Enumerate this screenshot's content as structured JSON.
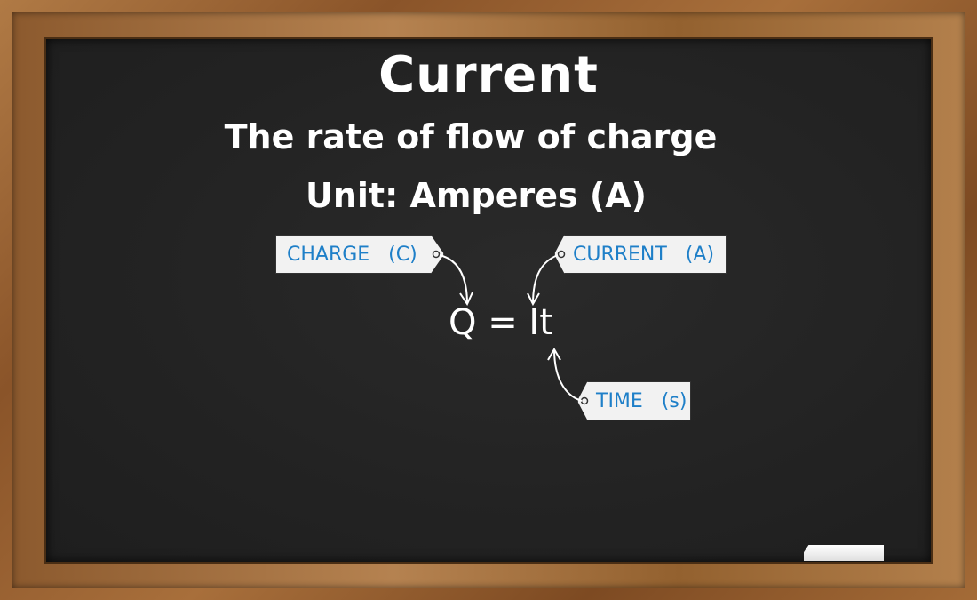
{
  "board": {
    "title": "Current",
    "definition": "The rate of flow of charge",
    "unit": "Unit: Amperes (A)",
    "equation": "Q = It"
  },
  "tags": {
    "charge": "CHARGE   (C)",
    "current": "CURRENT   (A)",
    "time": "TIME   (s)"
  },
  "colors": {
    "tag_text": "#1e7fc8",
    "tag_background": "#f2f2f2",
    "board": "#232323",
    "chalk_text": "#ffffff"
  }
}
